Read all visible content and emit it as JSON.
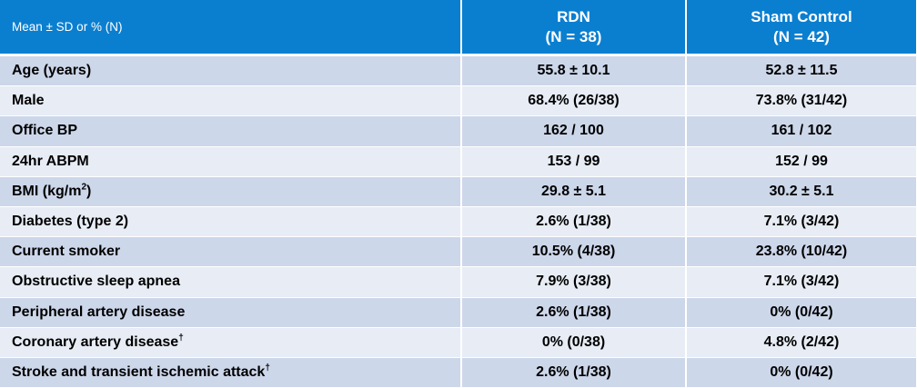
{
  "header": {
    "label": "Mean ± SD or % (N)",
    "rdn": {
      "name": "RDN",
      "n": "(N = 38)"
    },
    "sham": {
      "name": "Sham Control",
      "n": "(N = 42)"
    }
  },
  "rows": [
    {
      "label": "Age (years)",
      "sup": "",
      "rdn": "55.8 ± 10.1",
      "sham": "52.8 ± 11.5"
    },
    {
      "label": "Male",
      "sup": "",
      "rdn": "68.4%  (26/38)",
      "sham": "73.8%  (31/42)"
    },
    {
      "label": "Office BP",
      "sup": "",
      "rdn": "162 / 100",
      "sham": "161 / 102"
    },
    {
      "label": "24hr ABPM",
      "sup": "",
      "rdn": "153 / 99",
      "sham": "152 / 99"
    },
    {
      "label": "BMI (kg/m",
      "sup": "2",
      "suffix": ")",
      "rdn": "29.8 ± 5.1",
      "sham": "30.2 ± 5.1"
    },
    {
      "label": "Diabetes (type 2)",
      "sup": "",
      "rdn": "2.6%  (1/38)",
      "sham": "7.1%  (3/42)"
    },
    {
      "label": "Current smoker",
      "sup": "",
      "rdn": "10.5%  (4/38)",
      "sham": "23.8%  (10/42)"
    },
    {
      "label": "Obstructive sleep apnea",
      "sup": "",
      "rdn": "7.9%  (3/38)",
      "sham": "7.1%  (3/42)"
    },
    {
      "label": "Peripheral artery disease",
      "sup": "",
      "rdn": "2.6%  (1/38)",
      "sham": "0%  (0/42)"
    },
    {
      "label": "Coronary artery disease",
      "sup": "†",
      "rdn": "0%  (0/38)",
      "sham": "4.8%  (2/42)"
    },
    {
      "label": "Stroke and transient ischemic attack",
      "sup": "†",
      "rdn": "2.6%  (1/38)",
      "sham": "0%  (0/42)"
    }
  ]
}
